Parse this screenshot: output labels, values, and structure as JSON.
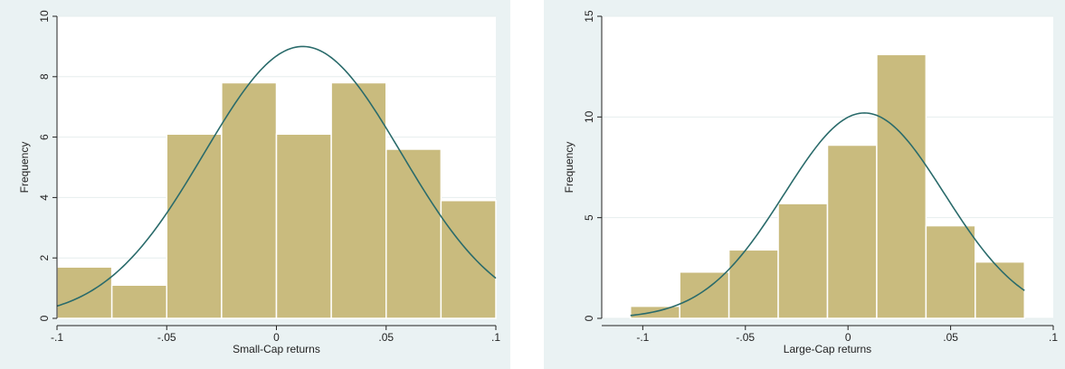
{
  "chart_data": [
    {
      "type": "bar",
      "xlabel": "Small-Cap returns",
      "ylabel": "Frequency",
      "xlim": [
        -0.1,
        0.1
      ],
      "ylim": [
        0,
        10
      ],
      "x_ticks": [
        -0.1,
        -0.05,
        0,
        0.05,
        0.1
      ],
      "x_tick_labels": [
        "-.1",
        "-.05",
        "0",
        ".05",
        ".1"
      ],
      "y_ticks": [
        0,
        2,
        4,
        6,
        8,
        10
      ],
      "y_tick_labels": [
        "0",
        "2",
        "4",
        "6",
        "8",
        "10"
      ],
      "grid": true,
      "bins": [
        {
          "start": -0.1,
          "end": -0.075,
          "value": 1.7
        },
        {
          "start": -0.075,
          "end": -0.05,
          "value": 1.1
        },
        {
          "start": -0.05,
          "end": -0.025,
          "value": 6.1
        },
        {
          "start": -0.025,
          "end": 0.0,
          "value": 7.8
        },
        {
          "start": 0.0,
          "end": 0.025,
          "value": 6.1
        },
        {
          "start": 0.025,
          "end": 0.05,
          "value": 7.8
        },
        {
          "start": 0.05,
          "end": 0.075,
          "value": 5.6
        },
        {
          "start": 0.075,
          "end": 0.1,
          "value": 3.9
        }
      ],
      "normal_curve": {
        "mean": 0.012,
        "sd": 0.045,
        "peak": 9.0
      }
    },
    {
      "type": "bar",
      "xlabel": "Large-Cap returns",
      "ylabel": "Frequency",
      "xlim": [
        -0.12,
        0.1
      ],
      "ylim": [
        0,
        15
      ],
      "x_ticks": [
        -0.1,
        -0.05,
        0,
        0.05,
        0.1
      ],
      "x_tick_labels": [
        "-.1",
        "-.05",
        "0",
        ".05",
        ".1"
      ],
      "y_ticks": [
        0,
        5,
        10,
        15
      ],
      "y_tick_labels": [
        "0",
        "5",
        "10",
        "15"
      ],
      "grid": true,
      "bins": [
        {
          "start": -0.106,
          "end": -0.082,
          "value": 0.6
        },
        {
          "start": -0.082,
          "end": -0.058,
          "value": 2.3
        },
        {
          "start": -0.058,
          "end": -0.034,
          "value": 3.4
        },
        {
          "start": -0.034,
          "end": -0.01,
          "value": 5.7
        },
        {
          "start": -0.01,
          "end": 0.014,
          "value": 8.6
        },
        {
          "start": 0.014,
          "end": 0.038,
          "value": 13.1
        },
        {
          "start": 0.038,
          "end": 0.062,
          "value": 4.6
        },
        {
          "start": 0.062,
          "end": 0.086,
          "value": 2.8
        }
      ],
      "normal_curve": {
        "mean": 0.008,
        "sd": 0.039,
        "peak": 10.2
      }
    }
  ]
}
